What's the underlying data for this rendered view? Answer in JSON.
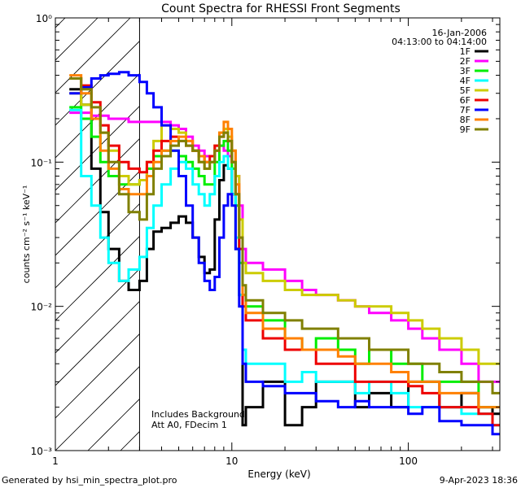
{
  "colors": {
    "background": "#ffffff",
    "axis": "#000000",
    "series": [
      "#000000",
      "#ff00ff",
      "#00ee00",
      "#00ffff",
      "#cccc00",
      "#ee0000",
      "#0000ff",
      "#ff8000",
      "#808000"
    ]
  },
  "header": {
    "date": "16-Jan-2006",
    "time_range": "04:13:00 to 04:14:00"
  },
  "annotation": {
    "line1": "Includes Background",
    "line2": "Att A0, FDecim 1"
  },
  "footer": {
    "left": "Generated by hsi_min_spectra_plot.pro",
    "right": "9-Apr-2023 18:36"
  },
  "chart_data": {
    "type": "line",
    "title": "Count Spectra for RHESSI Front Segments",
    "xlabel": "Energy (keV)",
    "ylabel": "counts cm⁻² s⁻¹ keV⁻¹",
    "xscale": "log",
    "yscale": "log",
    "xlim": [
      1.0,
      330
    ],
    "ylim": [
      0.001,
      1.0
    ],
    "x_ticks": [
      {
        "value": 1,
        "label": "1"
      },
      {
        "value": 10,
        "label": "10"
      },
      {
        "value": 100,
        "label": "100"
      }
    ],
    "y_ticks": [
      {
        "value": 0.001,
        "label": "10⁻³"
      },
      {
        "value": 0.01,
        "label": "10⁻²"
      },
      {
        "value": 0.1,
        "label": "10⁻¹"
      },
      {
        "value": 1.0,
        "label": "10⁰"
      }
    ],
    "excluded_region": {
      "x_range": [
        1.0,
        3.0
      ],
      "pattern": "diagonal-hatch"
    },
    "legend_position": "top-right",
    "series": [
      {
        "name": "1F",
        "x": [
          1.2,
          1.4,
          1.6,
          1.8,
          2.0,
          2.3,
          2.6,
          3.0,
          3.3,
          3.6,
          4.0,
          4.5,
          5.0,
          5.5,
          6.0,
          6.5,
          7.0,
          7.5,
          8.0,
          8.5,
          9.0,
          9.5,
          10.0,
          10.5,
          11.0,
          11.5,
          12,
          15,
          20,
          25,
          30,
          40,
          50,
          60,
          80,
          100,
          120,
          150,
          200,
          250,
          300
        ],
        "y": [
          0.32,
          0.25,
          0.09,
          0.045,
          0.025,
          0.015,
          0.013,
          0.015,
          0.025,
          0.033,
          0.035,
          0.038,
          0.042,
          0.038,
          0.03,
          0.022,
          0.017,
          0.018,
          0.04,
          0.075,
          0.095,
          0.09,
          0.06,
          0.025,
          0.012,
          0.0015,
          0.002,
          0.003,
          0.0015,
          0.002,
          0.003,
          0.003,
          0.002,
          0.0025,
          0.002,
          0.003,
          0.003,
          0.002,
          0.0025,
          0.002,
          0.0018
        ]
      },
      {
        "name": "2F",
        "x": [
          1.2,
          1.4,
          1.6,
          1.8,
          2.0,
          2.3,
          2.6,
          3.0,
          3.3,
          3.6,
          4.0,
          4.5,
          5.0,
          5.5,
          6.0,
          6.5,
          7.0,
          7.5,
          8.0,
          8.5,
          9.0,
          9.5,
          10.0,
          10.5,
          11.0,
          11.5,
          12,
          15,
          20,
          25,
          30,
          40,
          50,
          60,
          80,
          100,
          120,
          150,
          200,
          250,
          300
        ],
        "y": [
          0.22,
          0.22,
          0.21,
          0.21,
          0.2,
          0.2,
          0.19,
          0.19,
          0.19,
          0.19,
          0.19,
          0.18,
          0.17,
          0.15,
          0.13,
          0.12,
          0.11,
          0.11,
          0.12,
          0.13,
          0.12,
          0.11,
          0.1,
          0.08,
          0.05,
          0.025,
          0.02,
          0.018,
          0.015,
          0.013,
          0.012,
          0.011,
          0.01,
          0.009,
          0.008,
          0.007,
          0.006,
          0.005,
          0.004,
          0.003,
          0.003
        ]
      },
      {
        "name": "3F",
        "x": [
          1.2,
          1.4,
          1.6,
          1.8,
          2.0,
          2.3,
          2.6,
          3.0,
          3.3,
          3.6,
          4.0,
          4.5,
          5.0,
          5.5,
          6.0,
          6.5,
          7.0,
          7.5,
          8.0,
          8.5,
          9.0,
          9.5,
          10.0,
          10.5,
          11.0,
          11.5,
          12,
          15,
          20,
          25,
          30,
          40,
          50,
          60,
          80,
          100,
          120,
          150,
          200,
          250,
          300
        ],
        "y": [
          0.24,
          0.2,
          0.15,
          0.1,
          0.08,
          0.07,
          0.07,
          0.075,
          0.09,
          0.11,
          0.12,
          0.12,
          0.11,
          0.1,
          0.09,
          0.08,
          0.07,
          0.07,
          0.1,
          0.13,
          0.14,
          0.12,
          0.09,
          0.05,
          0.02,
          0.012,
          0.01,
          0.008,
          0.006,
          0.005,
          0.006,
          0.005,
          0.004,
          0.005,
          0.004,
          0.004,
          0.003,
          0.003,
          0.003,
          0.002,
          0.002
        ]
      },
      {
        "name": "4F",
        "x": [
          1.2,
          1.4,
          1.6,
          1.8,
          2.0,
          2.3,
          2.6,
          3.0,
          3.3,
          3.6,
          4.0,
          4.5,
          5.0,
          5.5,
          6.0,
          6.5,
          7.0,
          7.5,
          8.0,
          8.5,
          9.0,
          9.5,
          10.0,
          10.5,
          11.0,
          11.5,
          12,
          15,
          20,
          25,
          30,
          40,
          50,
          60,
          80,
          100,
          120,
          150,
          200,
          250,
          300
        ],
        "y": [
          0.23,
          0.08,
          0.05,
          0.03,
          0.02,
          0.015,
          0.018,
          0.022,
          0.035,
          0.05,
          0.07,
          0.09,
          0.1,
          0.09,
          0.07,
          0.06,
          0.05,
          0.06,
          0.08,
          0.1,
          0.11,
          0.09,
          0.06,
          0.03,
          0.012,
          0.005,
          0.004,
          0.004,
          0.003,
          0.0035,
          0.003,
          0.003,
          0.0025,
          0.003,
          0.0025,
          0.002,
          0.002,
          0.002,
          0.0018,
          0.0018,
          0.0015
        ]
      },
      {
        "name": "5F",
        "x": [
          1.2,
          1.4,
          1.6,
          1.8,
          2.0,
          2.3,
          2.6,
          3.0,
          3.3,
          3.6,
          4.0,
          4.5,
          5.0,
          5.5,
          6.0,
          6.5,
          7.0,
          7.5,
          8.0,
          8.5,
          9.0,
          9.5,
          10.0,
          10.5,
          11.0,
          11.5,
          12,
          15,
          20,
          25,
          30,
          40,
          50,
          60,
          80,
          100,
          120,
          150,
          200,
          250,
          300
        ],
        "y": [
          0.3,
          0.25,
          0.2,
          0.16,
          0.12,
          0.08,
          0.07,
          0.075,
          0.1,
          0.14,
          0.18,
          0.17,
          0.16,
          0.14,
          0.12,
          0.1,
          0.09,
          0.1,
          0.13,
          0.16,
          0.17,
          0.15,
          0.12,
          0.08,
          0.04,
          0.02,
          0.017,
          0.015,
          0.013,
          0.012,
          0.012,
          0.011,
          0.01,
          0.01,
          0.009,
          0.008,
          0.007,
          0.006,
          0.005,
          0.004,
          0.004
        ]
      },
      {
        "name": "6F",
        "x": [
          1.2,
          1.4,
          1.6,
          1.8,
          2.0,
          2.3,
          2.6,
          3.0,
          3.3,
          3.6,
          4.0,
          4.5,
          5.0,
          5.5,
          6.0,
          6.5,
          7.0,
          7.5,
          8.0,
          8.5,
          9.0,
          9.5,
          10.0,
          10.5,
          11.0,
          11.5,
          12,
          15,
          20,
          25,
          30,
          40,
          50,
          60,
          80,
          100,
          120,
          150,
          200,
          250,
          300
        ],
        "y": [
          0.38,
          0.34,
          0.26,
          0.18,
          0.13,
          0.1,
          0.09,
          0.085,
          0.1,
          0.12,
          0.14,
          0.15,
          0.14,
          0.13,
          0.12,
          0.11,
          0.1,
          0.11,
          0.13,
          0.15,
          0.16,
          0.14,
          0.1,
          0.06,
          0.025,
          0.01,
          0.008,
          0.006,
          0.005,
          0.005,
          0.004,
          0.004,
          0.003,
          0.003,
          0.003,
          0.0028,
          0.0025,
          0.002,
          0.002,
          0.0018,
          0.0015
        ]
      },
      {
        "name": "7F",
        "x": [
          1.2,
          1.4,
          1.6,
          1.8,
          2.0,
          2.3,
          2.6,
          3.0,
          3.3,
          3.6,
          4.0,
          4.5,
          5.0,
          5.5,
          6.0,
          6.5,
          7.0,
          7.5,
          8.0,
          8.5,
          9.0,
          9.5,
          10.0,
          10.5,
          11.0,
          11.5,
          12,
          15,
          20,
          25,
          30,
          40,
          50,
          60,
          80,
          100,
          120,
          150,
          200,
          250,
          300
        ],
        "y": [
          0.3,
          0.33,
          0.38,
          0.4,
          0.41,
          0.42,
          0.4,
          0.36,
          0.3,
          0.24,
          0.18,
          0.12,
          0.08,
          0.05,
          0.03,
          0.02,
          0.015,
          0.013,
          0.016,
          0.03,
          0.05,
          0.06,
          0.05,
          0.025,
          0.01,
          0.004,
          0.003,
          0.0028,
          0.0025,
          0.0025,
          0.0022,
          0.002,
          0.0022,
          0.002,
          0.002,
          0.0018,
          0.002,
          0.0016,
          0.0015,
          0.0015,
          0.0013
        ]
      },
      {
        "name": "8F",
        "x": [
          1.2,
          1.4,
          1.6,
          1.8,
          2.0,
          2.3,
          2.6,
          3.0,
          3.3,
          3.6,
          4.0,
          4.5,
          5.0,
          5.5,
          6.0,
          6.5,
          7.0,
          7.5,
          8.0,
          8.5,
          9.0,
          9.5,
          10.0,
          10.5,
          11.0,
          11.5,
          12,
          15,
          20,
          25,
          30,
          40,
          50,
          60,
          80,
          100,
          120,
          150,
          200,
          250,
          300
        ],
        "y": [
          0.4,
          0.3,
          0.2,
          0.12,
          0.09,
          0.065,
          0.06,
          0.06,
          0.08,
          0.1,
          0.12,
          0.14,
          0.15,
          0.14,
          0.12,
          0.11,
          0.1,
          0.1,
          0.12,
          0.16,
          0.19,
          0.17,
          0.12,
          0.07,
          0.03,
          0.012,
          0.009,
          0.007,
          0.006,
          0.005,
          0.005,
          0.0045,
          0.004,
          0.004,
          0.0035,
          0.003,
          0.003,
          0.0025,
          0.0025,
          0.002,
          0.002
        ]
      },
      {
        "name": "9F",
        "x": [
          1.2,
          1.4,
          1.6,
          1.8,
          2.0,
          2.3,
          2.6,
          3.0,
          3.3,
          3.6,
          4.0,
          4.5,
          5.0,
          5.5,
          6.0,
          6.5,
          7.0,
          7.5,
          8.0,
          8.5,
          9.0,
          9.5,
          10.0,
          10.5,
          11.0,
          11.5,
          12,
          15,
          20,
          25,
          30,
          40,
          50,
          60,
          80,
          100,
          120,
          150,
          200,
          250,
          300
        ],
        "y": [
          0.38,
          0.32,
          0.24,
          0.16,
          0.1,
          0.06,
          0.045,
          0.04,
          0.06,
          0.09,
          0.11,
          0.13,
          0.14,
          0.13,
          0.12,
          0.1,
          0.09,
          0.1,
          0.12,
          0.15,
          0.16,
          0.14,
          0.1,
          0.06,
          0.03,
          0.014,
          0.011,
          0.009,
          0.008,
          0.007,
          0.007,
          0.006,
          0.006,
          0.005,
          0.005,
          0.004,
          0.004,
          0.0035,
          0.003,
          0.003,
          0.0025
        ]
      }
    ]
  }
}
